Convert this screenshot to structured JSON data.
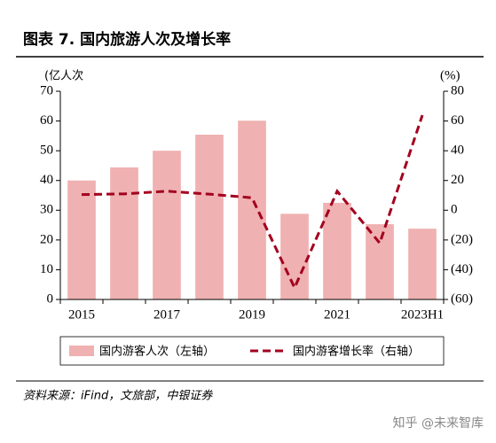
{
  "chart_data": {
    "type": "bar",
    "title": "图表 7. 国内旅游人次及增长率",
    "ylabel": "(亿人次",
    "y2label": "(%)",
    "categories": [
      "2015",
      null,
      "2017",
      null,
      "2019",
      null,
      "2021",
      null,
      "2023H1"
    ],
    "series": [
      {
        "name": "国内游客人次（左轴）",
        "type": "bar",
        "color": "#efb1b1",
        "values": [
          40,
          44.4,
          50,
          55.4,
          60.1,
          28.8,
          32.5,
          25.3,
          23.8
        ]
      },
      {
        "name": "国内游客增长率（右轴）",
        "type": "line",
        "axis": "y2",
        "color": "#a3001e",
        "dashed": true,
        "values": [
          10.5,
          11,
          12.8,
          10.8,
          8.4,
          -52.1,
          12.8,
          -22.1,
          63.9
        ]
      }
    ],
    "ylim": [
      0,
      70
    ],
    "yticks": [
      0,
      10,
      20,
      30,
      40,
      50,
      60,
      70
    ],
    "y2lim": [
      -60,
      80
    ],
    "y2ticks": [
      {
        "value": -60,
        "label": "(60)"
      },
      {
        "value": -40,
        "label": "(40)"
      },
      {
        "value": -20,
        "label": "(20)"
      },
      0,
      20,
      40,
      60,
      80
    ],
    "source": "资料来源：iFind，文旅部，中银证券",
    "watermark": "知乎 @未来智库"
  }
}
